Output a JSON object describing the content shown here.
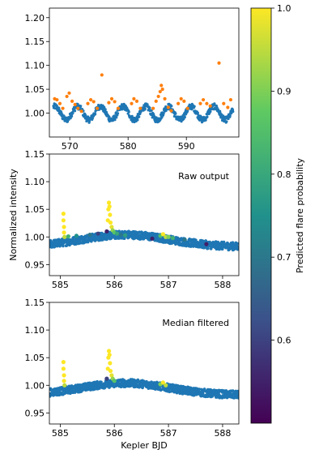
{
  "chart_data": [
    {
      "panel": "top",
      "type": "scatter",
      "xlim": [
        566.5,
        599
      ],
      "ylim": [
        0.95,
        1.22
      ],
      "xticks": [
        570,
        580,
        590
      ],
      "yticks": [
        1.0,
        1.05,
        1.1,
        1.15,
        1.2
      ],
      "ytick_labels": [
        "1.00",
        "1.05",
        "1.10",
        "1.15",
        "1.20"
      ],
      "series": [
        {
          "kind": "light curve",
          "color": "#1f77b4",
          "period": 3.9,
          "phase_start": 567.2,
          "amplitude": 0.014,
          "baseline": 1.0,
          "x_range": [
            567.2,
            598.0
          ]
        },
        {
          "kind": "flare points",
          "color": "#ff7f0e",
          "points": [
            [
              567.4,
              1.03
            ],
            [
              567.8,
              1.028
            ],
            [
              568.3,
              1.02
            ],
            [
              568.8,
              1.01
            ],
            [
              569.5,
              1.035
            ],
            [
              569.9,
              1.042
            ],
            [
              570.4,
              1.025
            ],
            [
              570.9,
              1.018
            ],
            [
              571.4,
              1.01
            ],
            [
              572.0,
              1.004
            ],
            [
              573.1,
              1.02
            ],
            [
              573.6,
              1.028
            ],
            [
              574.1,
              1.024
            ],
            [
              574.7,
              1.01
            ],
            [
              575.5,
              1.08
            ],
            [
              576.7,
              1.022
            ],
            [
              577.2,
              1.03
            ],
            [
              577.7,
              1.024
            ],
            [
              578.3,
              1.01
            ],
            [
              580.6,
              1.02
            ],
            [
              581.0,
              1.03
            ],
            [
              581.5,
              1.025
            ],
            [
              582.1,
              1.01
            ],
            [
              584.3,
              1.01
            ],
            [
              584.8,
              1.025
            ],
            [
              585.2,
              1.035
            ],
            [
              585.5,
              1.045
            ],
            [
              585.7,
              1.058
            ],
            [
              585.9,
              1.05
            ],
            [
              586.3,
              1.03
            ],
            [
              586.9,
              1.012
            ],
            [
              587.4,
              1.005
            ],
            [
              588.6,
              1.02
            ],
            [
              589.1,
              1.03
            ],
            [
              589.6,
              1.025
            ],
            [
              590.2,
              1.01
            ],
            [
              592.4,
              1.02
            ],
            [
              592.9,
              1.028
            ],
            [
              593.5,
              1.02
            ],
            [
              594.1,
              1.015
            ],
            [
              595.6,
              1.105
            ],
            [
              596.4,
              1.02
            ],
            [
              597.1,
              1.012
            ],
            [
              597.6,
              1.028
            ]
          ]
        }
      ]
    },
    {
      "panel": "middle",
      "type": "scatter",
      "annotation": "Raw output",
      "xlim": [
        584.8,
        588.3
      ],
      "ylim": [
        0.93,
        1.15
      ],
      "xticks": [
        585,
        586,
        587,
        588
      ],
      "yticks": [
        0.95,
        1.0,
        1.05,
        1.1,
        1.15
      ],
      "ytick_labels": [
        "0.95",
        "1.00",
        "1.05",
        "1.10",
        "1.15"
      ],
      "ylabel": "Normalized intensity",
      "series": [
        {
          "kind": "light curve",
          "color": "#1f77b4"
        },
        {
          "kind": "flare probability points",
          "points": [
            [
              585.06,
              1.042,
              1.0
            ],
            [
              585.06,
              1.03,
              1.0
            ],
            [
              585.07,
              1.018,
              1.0
            ],
            [
              585.07,
              1.008,
              1.0
            ],
            [
              585.08,
              1.0,
              0.95
            ],
            [
              585.15,
              1.001,
              0.82
            ],
            [
              585.3,
              1.002,
              0.75
            ],
            [
              585.55,
              1.004,
              0.7
            ],
            [
              585.7,
              1.006,
              0.6
            ],
            [
              585.86,
              1.01,
              0.55
            ],
            [
              585.88,
              1.03,
              1.0
            ],
            [
              585.89,
              1.05,
              1.0
            ],
            [
              585.9,
              1.062,
              1.0
            ],
            [
              585.91,
              1.055,
              1.0
            ],
            [
              585.92,
              1.04,
              1.0
            ],
            [
              585.93,
              1.026,
              1.0
            ],
            [
              585.95,
              1.018,
              0.98
            ],
            [
              585.97,
              1.012,
              0.92
            ],
            [
              586.0,
              1.008,
              0.86
            ],
            [
              586.05,
              1.006,
              0.8
            ],
            [
              586.12,
              1.004,
              0.7
            ],
            [
              586.2,
              1.003,
              0.78
            ],
            [
              586.7,
              0.997,
              0.55
            ],
            [
              586.85,
              1.002,
              0.85
            ],
            [
              586.9,
              1.005,
              1.0
            ],
            [
              586.95,
              1.0,
              0.95
            ],
            [
              587.0,
              1.0,
              0.9
            ],
            [
              587.08,
              0.998,
              0.82
            ],
            [
              587.3,
              0.995,
              0.7
            ],
            [
              587.7,
              0.987,
              0.55
            ]
          ]
        }
      ]
    },
    {
      "panel": "bottom",
      "type": "scatter",
      "annotation": "Median filtered",
      "xlim": [
        584.8,
        588.3
      ],
      "ylim": [
        0.93,
        1.15
      ],
      "xticks": [
        585,
        586,
        587,
        588
      ],
      "yticks": [
        0.95,
        1.0,
        1.05,
        1.1,
        1.15
      ],
      "ytick_labels": [
        "0.95",
        "1.00",
        "1.05",
        "1.10",
        "1.15"
      ],
      "xlabel": "Kepler BJD",
      "series": [
        {
          "kind": "light curve",
          "color": "#1f77b4"
        },
        {
          "kind": "flare probability points",
          "points": [
            [
              585.06,
              1.042,
              1.0
            ],
            [
              585.06,
              1.03,
              1.0
            ],
            [
              585.07,
              1.018,
              1.0
            ],
            [
              585.07,
              1.008,
              1.0
            ],
            [
              585.08,
              1.0,
              0.95
            ],
            [
              585.86,
              1.012,
              0.6
            ],
            [
              585.88,
              1.03,
              1.0
            ],
            [
              585.89,
              1.05,
              1.0
            ],
            [
              585.9,
              1.062,
              1.0
            ],
            [
              585.91,
              1.055,
              1.0
            ],
            [
              585.92,
              1.04,
              1.0
            ],
            [
              585.93,
              1.026,
              1.0
            ],
            [
              585.95,
              1.018,
              0.98
            ],
            [
              585.97,
              1.012,
              0.92
            ],
            [
              586.0,
              1.008,
              0.86
            ],
            [
              586.85,
              1.002,
              0.9
            ],
            [
              586.9,
              1.005,
              1.0
            ],
            [
              586.95,
              1.0,
              0.95
            ]
          ]
        }
      ]
    },
    {
      "panel": "colorbar",
      "type": "colorbar",
      "label": "Predicted flare probability",
      "range": [
        0.5,
        1.0
      ],
      "ticks": [
        0.6,
        0.7,
        0.8,
        0.9,
        1.0
      ],
      "tick_labels": [
        "0.6",
        "0.7",
        "0.8",
        "0.9",
        "1.0"
      ],
      "colormap_stops": [
        "#440154",
        "#3b528b",
        "#21918c",
        "#5ec962",
        "#fde725"
      ]
    }
  ]
}
